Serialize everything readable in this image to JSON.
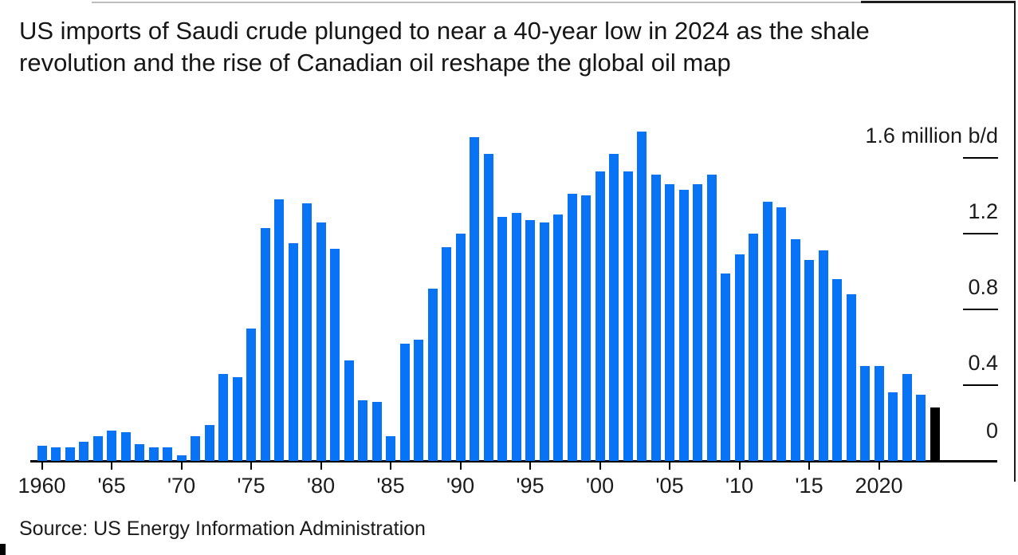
{
  "headline": {
    "line1": "US imports of Saudi crude plunged to near a 40-year low in 2024 as the shale",
    "line2": "revolution and the rise of Canadian oil reshape the global oil map",
    "full_text": "US imports of Saudi crude plunged to near a 40-year low in 2024 as the shale revolution and the rise of Canadian oil reshape the global oil map"
  },
  "source": {
    "text": "Source: US Energy Information Administration"
  },
  "chart_data": {
    "type": "bar",
    "title": "US imports of Saudi crude plunged to near a 40-year low in 2024 as the shale revolution and the rise of Canadian oil reshape the global oil map",
    "ylabel": "million b/d",
    "xlabel": "",
    "grid": false,
    "legend_position": "none",
    "axis_side": "right",
    "ylim": [
      0,
      1.8
    ],
    "bar_color": "#0873f4",
    "highlight": {
      "year": 2024,
      "color": "#000000"
    },
    "x": [
      1960,
      1961,
      1962,
      1963,
      1964,
      1965,
      1966,
      1967,
      1968,
      1969,
      1970,
      1971,
      1972,
      1973,
      1974,
      1975,
      1976,
      1977,
      1978,
      1979,
      1980,
      1981,
      1982,
      1983,
      1984,
      1985,
      1986,
      1987,
      1988,
      1989,
      1990,
      1991,
      1992,
      1993,
      1994,
      1995,
      1996,
      1997,
      1998,
      1999,
      2000,
      2001,
      2002,
      2003,
      2004,
      2005,
      2006,
      2007,
      2008,
      2009,
      2010,
      2011,
      2012,
      2013,
      2014,
      2015,
      2016,
      2017,
      2018,
      2019,
      2020,
      2021,
      2022,
      2023,
      2024
    ],
    "values": [
      0.08,
      0.07,
      0.07,
      0.1,
      0.13,
      0.16,
      0.15,
      0.09,
      0.07,
      0.07,
      0.03,
      0.13,
      0.19,
      0.46,
      0.44,
      0.7,
      1.23,
      1.38,
      1.15,
      1.36,
      1.26,
      1.12,
      0.53,
      0.32,
      0.31,
      0.13,
      0.62,
      0.64,
      0.91,
      1.13,
      1.2,
      1.71,
      1.62,
      1.29,
      1.31,
      1.27,
      1.26,
      1.3,
      1.41,
      1.4,
      1.53,
      1.62,
      1.53,
      1.74,
      1.51,
      1.46,
      1.43,
      1.46,
      1.51,
      0.99,
      1.09,
      1.2,
      1.37,
      1.34,
      1.17,
      1.06,
      1.11,
      0.96,
      0.88,
      0.5,
      0.5,
      0.36,
      0.46,
      0.35,
      0.28
    ],
    "x_ticks": [
      {
        "year": 1960,
        "label": "1960"
      },
      {
        "year": 1965,
        "label": "'65"
      },
      {
        "year": 1970,
        "label": "'70"
      },
      {
        "year": 1975,
        "label": "'75"
      },
      {
        "year": 1980,
        "label": "'80"
      },
      {
        "year": 1985,
        "label": "'85"
      },
      {
        "year": 1990,
        "label": "'90"
      },
      {
        "year": 1995,
        "label": "'95"
      },
      {
        "year": 2000,
        "label": "'00"
      },
      {
        "year": 2005,
        "label": "'05"
      },
      {
        "year": 2010,
        "label": "'10"
      },
      {
        "year": 2015,
        "label": "'15"
      },
      {
        "year": 2020,
        "label": "2020"
      }
    ],
    "y_ticks": [
      {
        "value": 1.6,
        "label": "1.6 million b/d"
      },
      {
        "value": 1.2,
        "label": "1.2"
      },
      {
        "value": 0.8,
        "label": "0.8"
      },
      {
        "value": 0.4,
        "label": "0.4"
      },
      {
        "value": 0,
        "label": "0"
      }
    ]
  }
}
